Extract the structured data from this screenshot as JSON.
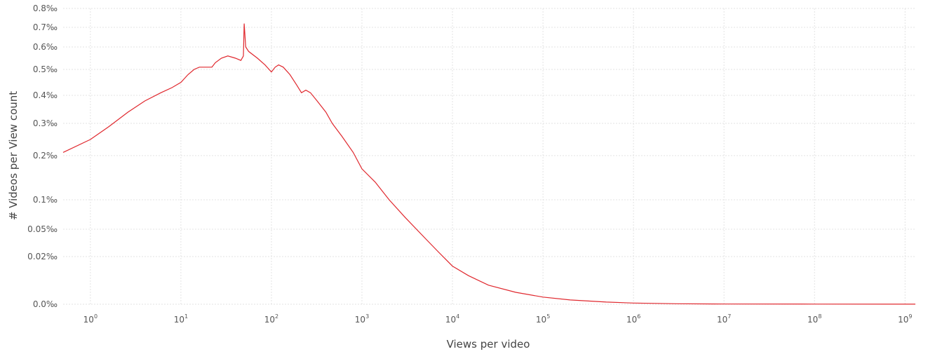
{
  "chart_data": {
    "type": "line",
    "title": "",
    "xlabel": "Views per video",
    "ylabel": "# Videos per View count",
    "x_scale": "log",
    "y_scale": "nonlinear",
    "x_range": [
      0.5,
      1300000000
    ],
    "y_range": [
      0,
      0.8
    ],
    "grid": true,
    "legend": "none",
    "color": "#e0282e",
    "x_ticks": [
      {
        "value": 1,
        "base": "10",
        "exp": "0"
      },
      {
        "value": 10,
        "base": "10",
        "exp": "1"
      },
      {
        "value": 100,
        "base": "10",
        "exp": "2"
      },
      {
        "value": 1000,
        "base": "10",
        "exp": "3"
      },
      {
        "value": 10000,
        "base": "10",
        "exp": "4"
      },
      {
        "value": 100000,
        "base": "10",
        "exp": "5"
      },
      {
        "value": 1000000,
        "base": "10",
        "exp": "6"
      },
      {
        "value": 10000000,
        "base": "10",
        "exp": "7"
      },
      {
        "value": 100000000,
        "base": "10",
        "exp": "8"
      },
      {
        "value": 1000000000,
        "base": "10",
        "exp": "9"
      }
    ],
    "y_ticks": [
      {
        "value": 0,
        "label": "0.0‰"
      },
      {
        "value": 0.02,
        "label": "0.02‰"
      },
      {
        "value": 0.05,
        "label": "0.05‰"
      },
      {
        "value": 0.1,
        "label": "0.1‰"
      },
      {
        "value": 0.2,
        "label": "0.2‰"
      },
      {
        "value": 0.3,
        "label": "0.3‰"
      },
      {
        "value": 0.4,
        "label": "0.4‰"
      },
      {
        "value": 0.5,
        "label": "0.5‰"
      },
      {
        "value": 0.6,
        "label": "0.6‰"
      },
      {
        "value": 0.7,
        "label": "0.7‰"
      },
      {
        "value": 0.8,
        "label": "0.8‰"
      }
    ],
    "series": [
      {
        "points": [
          [
            0.5,
            0.21
          ],
          [
            1,
            0.25
          ],
          [
            1.6,
            0.29
          ],
          [
            2.6,
            0.34
          ],
          [
            4,
            0.38
          ],
          [
            6,
            0.41
          ],
          [
            8,
            0.43
          ],
          [
            10,
            0.45
          ],
          [
            12,
            0.48
          ],
          [
            14,
            0.5
          ],
          [
            16,
            0.51
          ],
          [
            18,
            0.51
          ],
          [
            22,
            0.51
          ],
          [
            24,
            0.53
          ],
          [
            28,
            0.55
          ],
          [
            33,
            0.56
          ],
          [
            40,
            0.55
          ],
          [
            46,
            0.54
          ],
          [
            49,
            0.56
          ],
          [
            50,
            0.72
          ],
          [
            52,
            0.6
          ],
          [
            56,
            0.58
          ],
          [
            70,
            0.55
          ],
          [
            85,
            0.52
          ],
          [
            100,
            0.49
          ],
          [
            110,
            0.51
          ],
          [
            120,
            0.52
          ],
          [
            135,
            0.51
          ],
          [
            160,
            0.48
          ],
          [
            190,
            0.44
          ],
          [
            215,
            0.41
          ],
          [
            240,
            0.42
          ],
          [
            270,
            0.41
          ],
          [
            320,
            0.38
          ],
          [
            400,
            0.34
          ],
          [
            470,
            0.3
          ],
          [
            500,
            0.29
          ],
          [
            600,
            0.26
          ],
          [
            800,
            0.21
          ],
          [
            1000,
            0.17
          ],
          [
            1400,
            0.14
          ],
          [
            2000,
            0.1
          ],
          [
            3000,
            0.07
          ],
          [
            5000,
            0.04
          ],
          [
            7000,
            0.025
          ],
          [
            10000,
            0.016
          ],
          [
            15000,
            0.012
          ],
          [
            25000,
            0.008
          ],
          [
            50000,
            0.005
          ],
          [
            100000,
            0.003
          ],
          [
            200000,
            0.0018
          ],
          [
            500000,
            0.0009
          ],
          [
            1000000,
            0.0005
          ],
          [
            3000000,
            0.0002
          ],
          [
            10000000,
            0.0001
          ],
          [
            100000000,
            5e-05
          ],
          [
            1000000000,
            3e-05
          ],
          [
            1300000000,
            3e-05
          ]
        ]
      }
    ]
  }
}
